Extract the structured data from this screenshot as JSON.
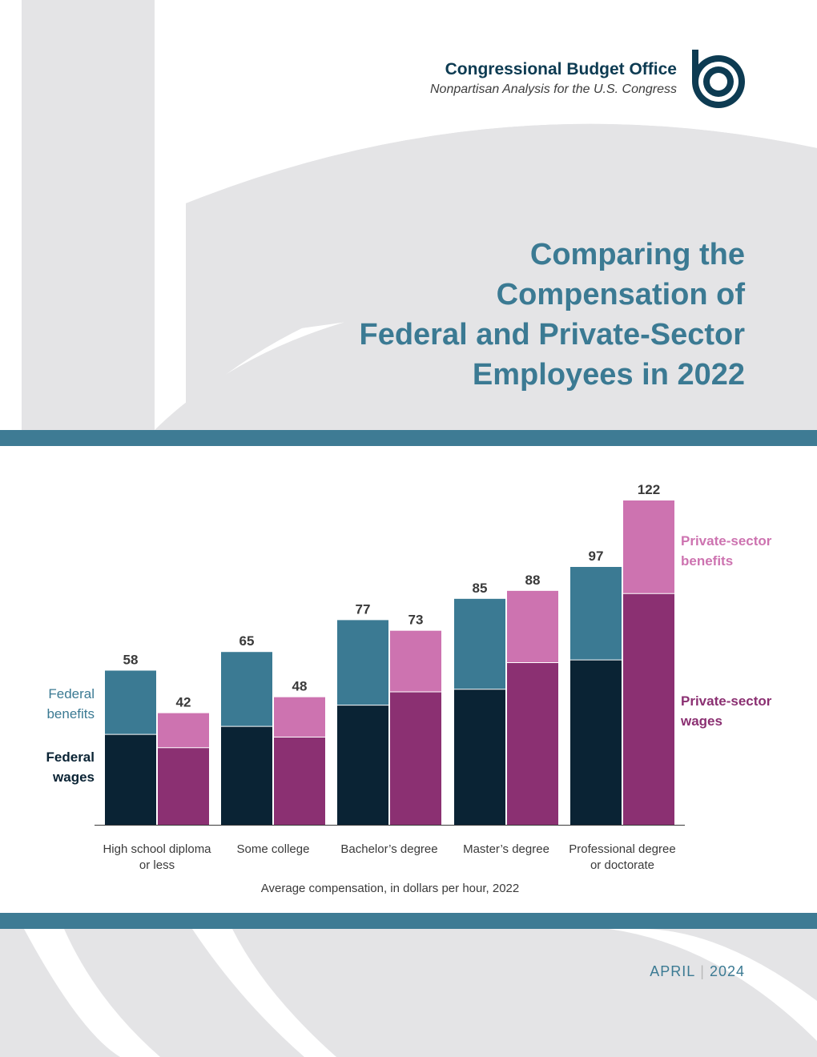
{
  "header": {
    "org_name": "Congressional Budget Office",
    "org_subtitle": "Nonpartisan Analysis for the U.S. Congress",
    "logo_icon": "cbo-logo-icon"
  },
  "title": {
    "line1": "Comparing the",
    "line2": "Compensation of",
    "line3": "Federal and Private-Sector",
    "line4": "Employees in 2022"
  },
  "footer": {
    "month": "APRIL",
    "year": "2024"
  },
  "colors": {
    "federal_wages": "#0a2334",
    "federal_benefits": "#3b7a93",
    "private_wages": "#8b3072",
    "private_benefits": "#cd73b0",
    "band": "#3e7b94",
    "background_shape": "#e4e4e6"
  },
  "chart_data": {
    "type": "bar",
    "stacked": true,
    "categories": [
      [
        "High school diploma",
        "or less"
      ],
      [
        "Some college"
      ],
      [
        "Bachelor’s degree"
      ],
      [
        "Master’s degree"
      ],
      [
        "Professional degree",
        "or doctorate"
      ]
    ],
    "series": [
      {
        "name": "Federal wages",
        "group": "federal",
        "part": "wages",
        "values": [
          34,
          37,
          45,
          51,
          62
        ]
      },
      {
        "name": "Federal benefits",
        "group": "federal",
        "part": "benefits",
        "values": [
          24,
          28,
          32,
          34,
          35
        ]
      },
      {
        "name": "Private-sector wages",
        "group": "private",
        "part": "wages",
        "values": [
          29,
          33,
          50,
          61,
          87
        ]
      },
      {
        "name": "Private-sector benefits",
        "group": "private",
        "part": "benefits",
        "values": [
          13,
          15,
          23,
          27,
          35
        ]
      }
    ],
    "totals": {
      "federal": [
        58,
        65,
        77,
        85,
        97
      ],
      "private": [
        42,
        48,
        73,
        88,
        122
      ]
    },
    "legend_labels": {
      "federal_benefits": [
        "Federal",
        "benefits"
      ],
      "federal_wages": [
        "Federal",
        "wages"
      ],
      "private_benefits": [
        "Private-sector",
        "benefits"
      ],
      "private_wages": [
        "Private-sector",
        "wages"
      ]
    },
    "xlabel": "Average compensation, in dollars per hour, 2022",
    "ylim": [
      0,
      122
    ],
    "grid": false
  }
}
